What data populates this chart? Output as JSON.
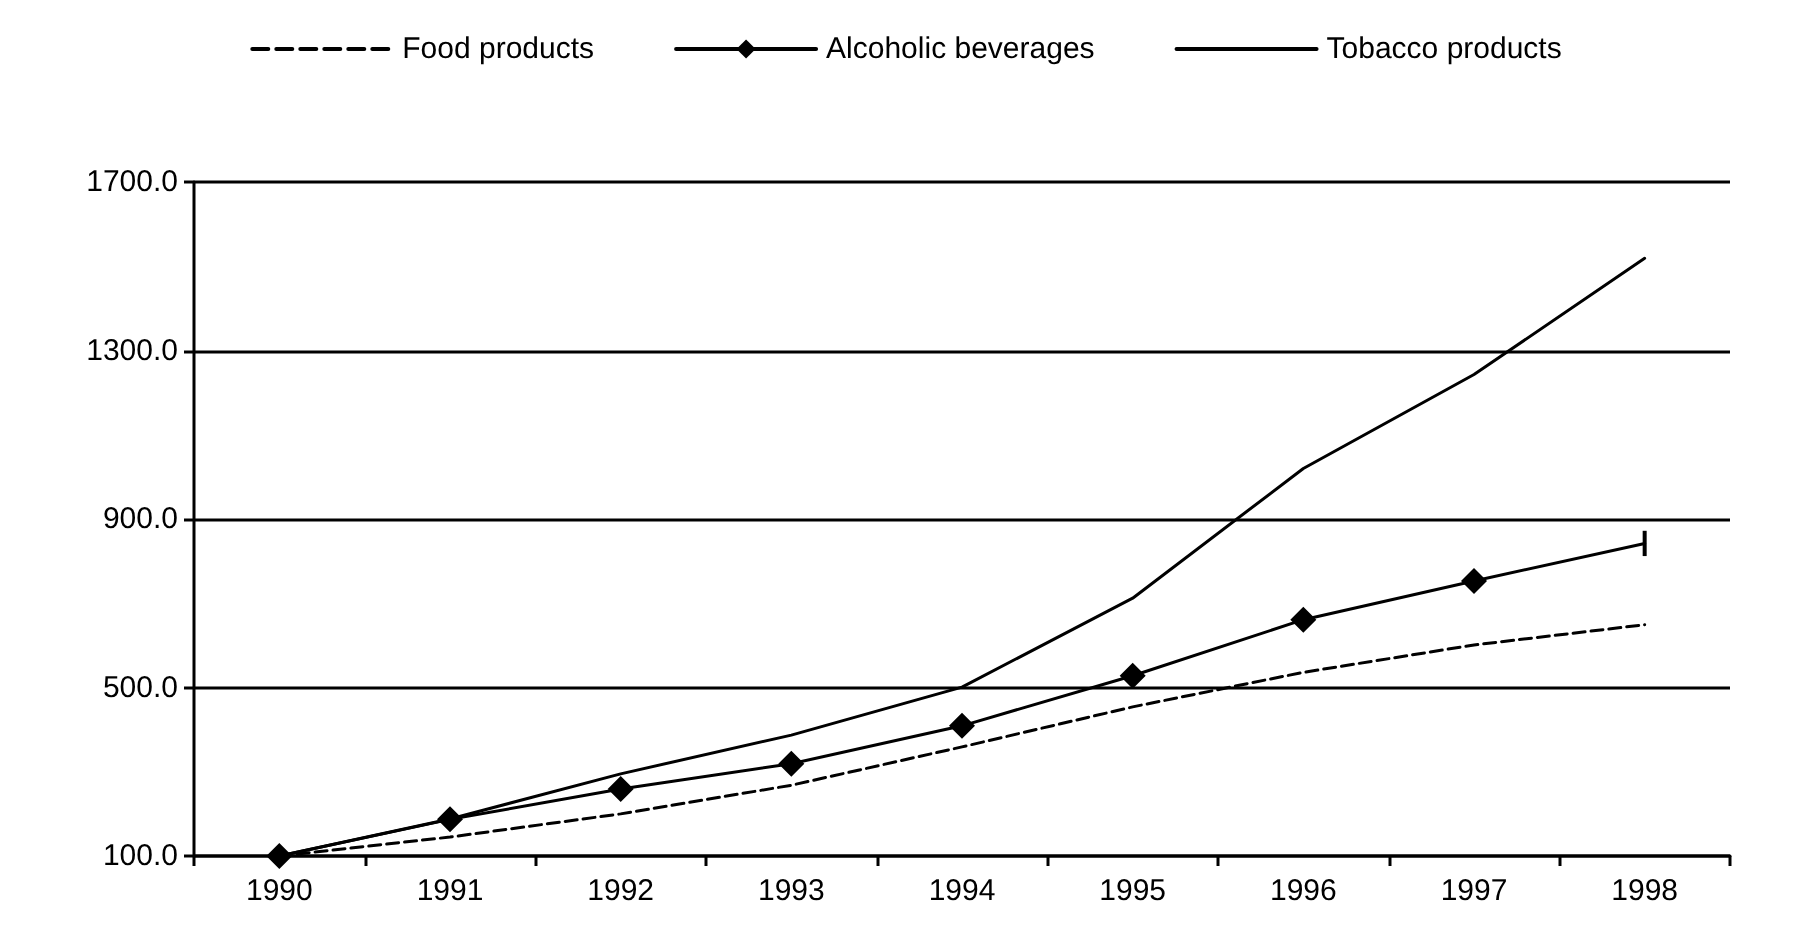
{
  "chart_data": {
    "type": "line",
    "categories": [
      "1990",
      "1991",
      "1992",
      "1993",
      "1994",
      "1995",
      "1996",
      "1997",
      "1998"
    ],
    "ylim": [
      100,
      1700
    ],
    "yticks": [
      {
        "value": 100,
        "label": "100.0"
      },
      {
        "value": 500,
        "label": "500.0"
      },
      {
        "value": 900,
        "label": "900.0"
      },
      {
        "value": 1300,
        "label": "1300.0"
      },
      {
        "value": 1700,
        "label": "1700.0"
      }
    ],
    "grid": "y",
    "legend": "top",
    "series": [
      {
        "name": "Food products",
        "color": "#000000",
        "marker": "none",
        "line_style": "dashed",
        "values": [
          100,
          145,
          200,
          268,
          359,
          454,
          536,
          601,
          649
        ]
      },
      {
        "name": "Alcoholic beverages",
        "color": "#000000",
        "marker": "diamond",
        "line_style": "solid",
        "values": [
          100,
          187,
          259,
          319,
          409,
          528,
          661,
          753,
          842
        ],
        "errors": [
          null,
          null,
          null,
          null,
          null,
          null,
          null,
          null,
          30
        ]
      },
      {
        "name": "Tobacco products",
        "color": "#000000",
        "marker": "none",
        "line_style": "solid",
        "values": [
          100,
          188,
          295,
          387,
          501,
          712,
          1020,
          1243,
          1519
        ]
      }
    ]
  }
}
